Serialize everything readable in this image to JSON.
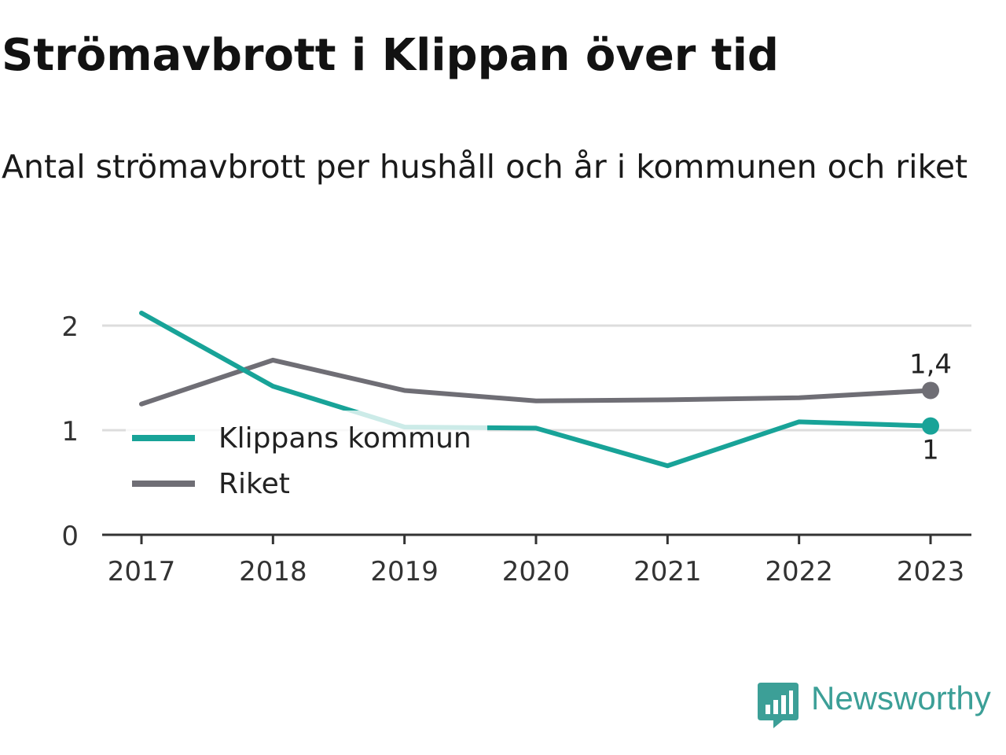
{
  "header": {
    "title": "Strömavbrott i Klippan över tid",
    "subtitle": "Antal strömavbrott per hushåll och år i kommunen och riket"
  },
  "chart_data": {
    "type": "line",
    "x": [
      2017,
      2018,
      2019,
      2020,
      2021,
      2022,
      2023
    ],
    "ylim": [
      0,
      2.3
    ],
    "yticks": [
      {
        "value": 0,
        "label": "0"
      },
      {
        "value": 1,
        "label": "1"
      },
      {
        "value": 2,
        "label": "2"
      }
    ],
    "xticks": [
      "2017",
      "2018",
      "2019",
      "2020",
      "2021",
      "2022",
      "2023"
    ],
    "grid": true,
    "legend_position": "inside-left",
    "series": [
      {
        "name": "Klippans kommun",
        "color": "#18a398",
        "values": [
          2.12,
          1.42,
          1.03,
          1.02,
          0.66,
          1.08,
          1.04
        ],
        "end_label": "1"
      },
      {
        "name": "Riket",
        "color": "#6f6e75",
        "values": [
          1.25,
          1.67,
          1.38,
          1.28,
          1.29,
          1.31,
          1.38
        ],
        "end_label": "1,4"
      }
    ]
  },
  "logo": {
    "text": "Newsworthy",
    "icon": "newsworthy-logo-icon",
    "color": "#3c9f97"
  }
}
